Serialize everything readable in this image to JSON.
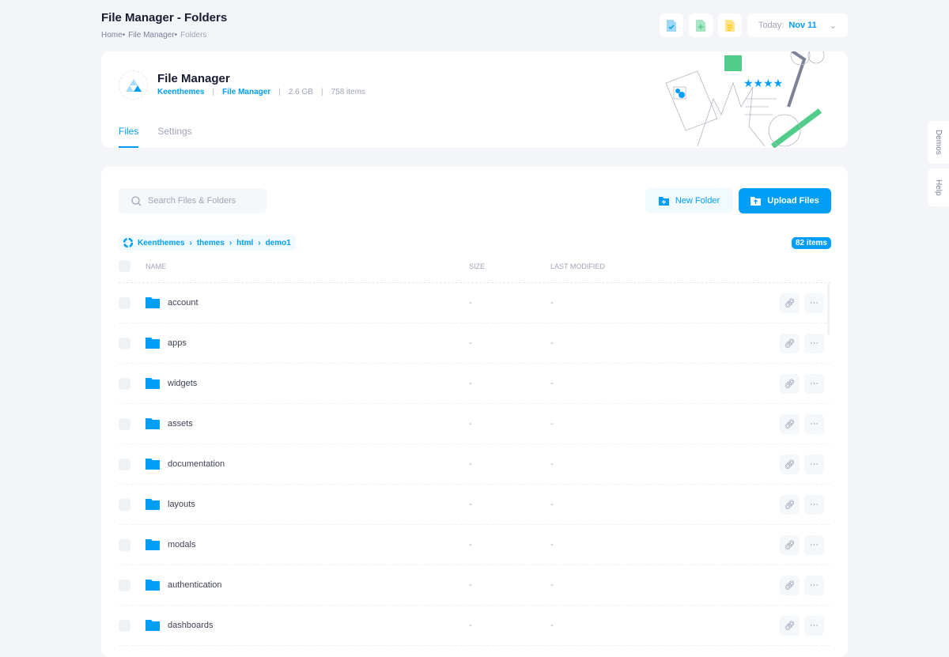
{
  "page": {
    "title": "File Manager - Folders",
    "breadcrumb": [
      "Home",
      "File Manager",
      "Folders"
    ]
  },
  "toolbar": {
    "date_label": "Today:",
    "date_value": "Nov 11",
    "icons": [
      "file-check-icon",
      "file-add-icon",
      "file-text-icon"
    ]
  },
  "header": {
    "name": "File Manager",
    "meta": {
      "org": "Keenthemes",
      "section": "File Manager",
      "size": "2.6 GB",
      "items": "758 items"
    },
    "tabs": [
      {
        "label": "Files",
        "active": true
      },
      {
        "label": "Settings",
        "active": false
      }
    ]
  },
  "main": {
    "search_placeholder": "Search Files & Folders",
    "new_folder": "New Folder",
    "upload": "Upload Files",
    "path": [
      "Keenthemes",
      "themes",
      "html",
      "demo1"
    ],
    "count": "82 items",
    "columns": {
      "name": "NAME",
      "size": "SIZE",
      "modified": "LAST MODIFIED"
    },
    "rows": [
      {
        "name": "account",
        "size": "-",
        "modified": "-"
      },
      {
        "name": "apps",
        "size": "-",
        "modified": "-"
      },
      {
        "name": "widgets",
        "size": "-",
        "modified": "-"
      },
      {
        "name": "assets",
        "size": "-",
        "modified": "-"
      },
      {
        "name": "documentation",
        "size": "-",
        "modified": "-"
      },
      {
        "name": "layouts",
        "size": "-",
        "modified": "-"
      },
      {
        "name": "modals",
        "size": "-",
        "modified": "-"
      },
      {
        "name": "authentication",
        "size": "-",
        "modified": "-"
      },
      {
        "name": "dashboards",
        "size": "-",
        "modified": "-"
      }
    ]
  },
  "sidebar": {
    "demos": "Demos",
    "help": "Help"
  },
  "colors": {
    "primary": "#009ef7",
    "background": "#f3f5f9"
  }
}
